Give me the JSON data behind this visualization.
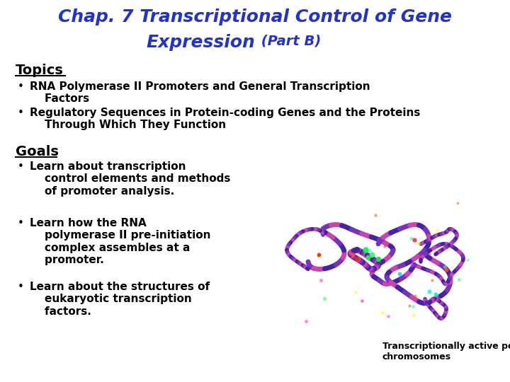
{
  "title_line1": "Chap. 7 Transcriptional Control of Gene",
  "title_line2_main": "Expression",
  "title_line2_part": " (Part B)",
  "title_color": "#2233CC",
  "bg_color": "#FFFFFF",
  "body_color": "#000000",
  "section1_header": "Topics",
  "section1_items": [
    "RNA Polymerase II Promoters and General Transcription\n    Factors",
    "Regulatory Sequences in Protein-coding Genes and the Proteins\n    Through Which They Function"
  ],
  "section2_header": "Goals",
  "section2_items": [
    "Learn about transcription\n    control elements and methods\n    of promoter analysis.",
    "Learn how the RNA\n    polymerase II pre-initiation\n    complex assembles at a\n    promoter.",
    "Learn about the structures of\n    eukaryotic transcription\n    factors."
  ],
  "caption": "Transcriptionally active polytene\nchromosomes",
  "title_fs": 18,
  "header_fs": 14,
  "body_fs": 11,
  "caption_fs": 9
}
